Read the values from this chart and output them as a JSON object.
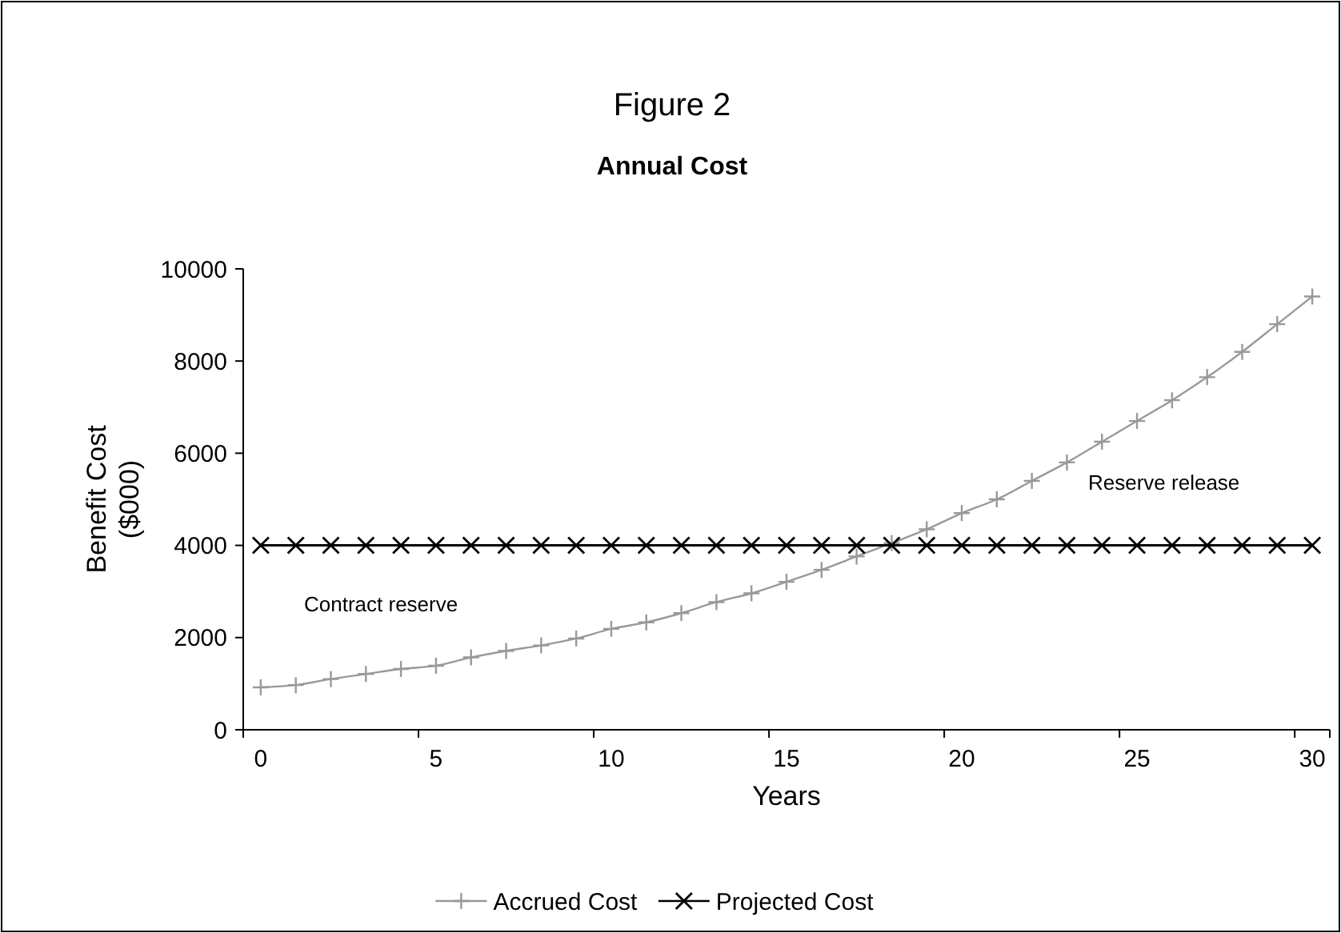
{
  "chart_data": {
    "type": "line",
    "title": "Figure 2",
    "subtitle": "Annual Cost",
    "xlabel": "Years",
    "ylabel": "Benefit Cost\n($000)",
    "categories": [
      "0",
      null,
      null,
      null,
      null,
      "5",
      null,
      null,
      null,
      null,
      "10",
      null,
      null,
      null,
      null,
      "15",
      null,
      null,
      null,
      null,
      "20",
      null,
      null,
      null,
      null,
      "25",
      null,
      null,
      null,
      null,
      "30"
    ],
    "series": [
      {
        "name": "Accrued Cost",
        "color": "#999999",
        "marker": "plus",
        "values": [
          920,
          970,
          1100,
          1210,
          1320,
          1390,
          1570,
          1710,
          1830,
          1980,
          2190,
          2330,
          2530,
          2770,
          2960,
          3210,
          3470,
          3760,
          4050,
          4350,
          4700,
          5000,
          5400,
          5800,
          6250,
          6700,
          7150,
          7650,
          8200,
          8800,
          9400
        ]
      },
      {
        "name": "Projected Cost",
        "color": "#000000",
        "marker": "cross",
        "values": [
          4000,
          4000,
          4000,
          4000,
          4000,
          4000,
          4000,
          4000,
          4000,
          4000,
          4000,
          4000,
          4000,
          4000,
          4000,
          4000,
          4000,
          4000,
          4000,
          4000,
          4000,
          4000,
          4000,
          4000,
          4000,
          4000,
          4000,
          4000,
          4000,
          4000,
          4000
        ]
      }
    ],
    "ylim": [
      0,
      10000
    ],
    "yticks": [
      0,
      2000,
      4000,
      6000,
      8000,
      10000
    ],
    "grid": false,
    "legend": "bottom",
    "annotations": [
      "Contract reserve",
      "Reserve release"
    ]
  }
}
